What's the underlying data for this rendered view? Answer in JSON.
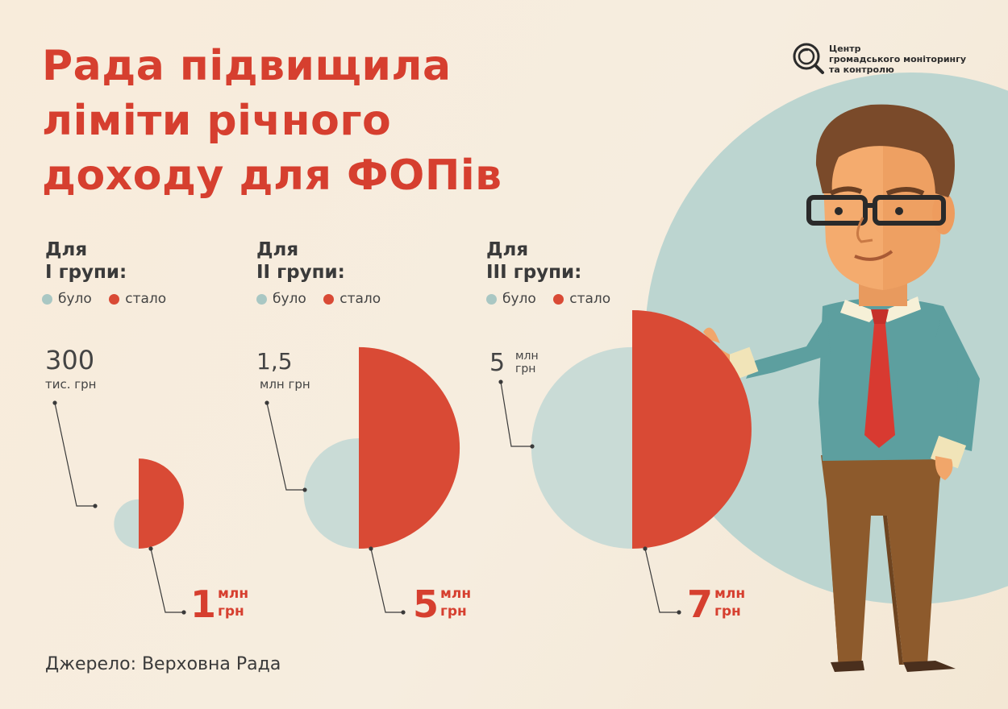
{
  "title": {
    "line1": "Рада підвищила",
    "line2": "ліміти річного",
    "line3": "доходу для ФОПів"
  },
  "logo": {
    "line1": "Центр",
    "line2": "громадського моніторингу",
    "line3": "та контролю",
    "icon": "magnifier-eye-icon"
  },
  "legend": {
    "before": "було",
    "after": "стало"
  },
  "colors": {
    "title": "#d63f2f",
    "before": "#c9dbd6",
    "after": "#d94a35",
    "before_dot": "#a9c7c3",
    "after_dot": "#d94a35",
    "big_number": "#d63f2f",
    "bg_circle": "#bcd5d0"
  },
  "chart_data": {
    "type": "semicircle-comparison",
    "unit_note": "values in UAH millions",
    "groups": [
      {
        "head1": "Для",
        "head2": "I групи:",
        "before_value": 0.3,
        "after_value": 1,
        "before_label_num": "300",
        "before_label_unit": "тис. грн",
        "after_label_num": "1",
        "after_label_unit1": "млн",
        "after_label_unit2": "грн"
      },
      {
        "head1": "Для",
        "head2": "II групи:",
        "before_value": 1.5,
        "after_value": 5,
        "before_label_num": "1,5",
        "before_label_unit": "млн грн",
        "after_label_num": "5",
        "after_label_unit1": "млн",
        "after_label_unit2": "грн"
      },
      {
        "head1": "Для",
        "head2": "III групи:",
        "before_value": 5,
        "after_value": 7,
        "before_label_num": "5",
        "before_label_unit1": "млн",
        "before_label_unit2": "грн",
        "after_label_num": "7",
        "after_label_unit1": "млн",
        "after_label_unit2": "грн"
      }
    ]
  },
  "source": "Джерело: Верховна Рада",
  "illustration": "businessman-presenting-illustration"
}
